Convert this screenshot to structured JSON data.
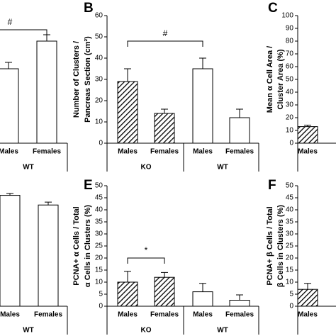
{
  "chart_data": [
    {
      "type": "bar",
      "categories": [
        "Males",
        "Females"
      ],
      "groups": [
        "WT"
      ],
      "series": [
        {
          "values": [
            35,
            48
          ],
          "errors": [
            3,
            3
          ],
          "patterns": [
            "none",
            "none"
          ]
        }
      ],
      "ylim": [
        0,
        60
      ],
      "annotation": "#"
    },
    {
      "type": "bar",
      "letter": "B",
      "ylabel": [
        "Number of Clusters /",
        "Pancreas Section (cm²)"
      ],
      "categories": [
        "Males",
        "Females",
        "Males",
        "Females"
      ],
      "groups": [
        "KO",
        "WT"
      ],
      "series": [
        {
          "values": [
            29,
            14,
            35,
            12
          ],
          "errors": [
            6,
            2,
            5,
            4
          ],
          "patterns": [
            "hatch",
            "hatch",
            "none",
            "none"
          ]
        }
      ],
      "ylim": [
        0,
        60
      ],
      "yticks": [
        0,
        10,
        20,
        30,
        40,
        50,
        60
      ],
      "annotation": "#"
    },
    {
      "type": "bar",
      "letter": "C",
      "ylabel": [
        "Mean α Cell Area /",
        "Cluster Area (%)"
      ],
      "categories": [
        "Males"
      ],
      "series": [
        {
          "values": [
            13
          ],
          "errors": [
            1.2
          ],
          "patterns": [
            "hatch"
          ]
        }
      ],
      "ylim": [
        0,
        100
      ],
      "yticks": [
        0,
        10,
        20,
        30,
        40,
        50,
        60,
        70,
        80,
        90,
        100
      ]
    },
    {
      "type": "bar",
      "categories": [
        "Males",
        "Females"
      ],
      "groups": [
        "WT"
      ],
      "series": [
        {
          "values": [
            46,
            42
          ],
          "errors": [
            0.8,
            1.2
          ],
          "patterns": [
            "none",
            "none"
          ]
        }
      ],
      "ylim": [
        0,
        50
      ]
    },
    {
      "type": "bar",
      "letter": "E",
      "ylabel": [
        "PCNA+ α Cells / Total",
        "α Cells in Clusters (%)"
      ],
      "categories": [
        "Males",
        "Females",
        "Males",
        "Females"
      ],
      "groups": [
        "KO",
        "WT"
      ],
      "series": [
        {
          "values": [
            10,
            12,
            6,
            2.5
          ],
          "errors": [
            4.5,
            2,
            3.5,
            2.2
          ],
          "patterns": [
            "hatch",
            "hatch",
            "none",
            "none"
          ]
        }
      ],
      "ylim": [
        0,
        50
      ],
      "yticks": [
        0,
        5,
        10,
        15,
        20,
        25,
        30,
        35,
        40,
        45,
        50
      ],
      "annotation": "*"
    },
    {
      "type": "bar",
      "letter": "F",
      "ylabel": [
        "PCNA+ β Cells / Total",
        "β Cells in Clusters (%)"
      ],
      "categories": [
        "Males"
      ],
      "series": [
        {
          "values": [
            7
          ],
          "errors": [
            2.5
          ],
          "patterns": [
            "hatch"
          ]
        }
      ],
      "ylim": [
        0,
        50
      ],
      "yticks": [
        0,
        5,
        10,
        15,
        20,
        25,
        30,
        35,
        40,
        45,
        50
      ]
    }
  ]
}
